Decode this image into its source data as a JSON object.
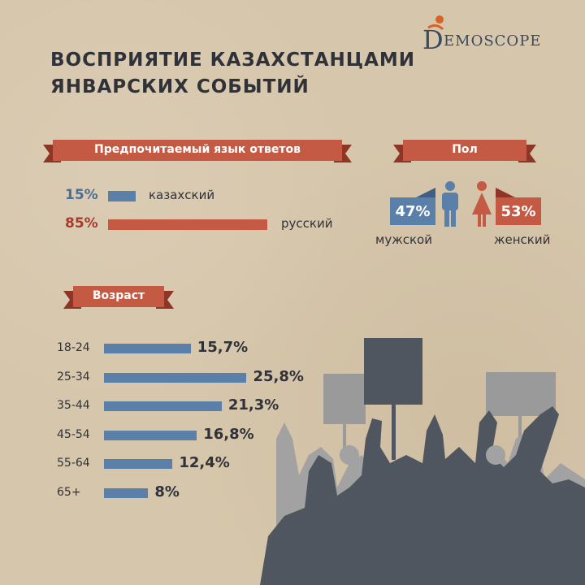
{
  "header": {
    "title_line1": "ВОСПРИЯТИЕ КАЗАХСТАНЦАМИ",
    "title_line2": "ЯНВАРСКИХ СОБЫТИЙ",
    "logo_initial": "D",
    "logo_text": "EMOSCOPE"
  },
  "colors": {
    "banner": "#c55a44",
    "banner_dark": "#8e3526",
    "blue": "#5a7fa8",
    "red": "#c55a44",
    "crowd_dark": "#505660",
    "crowd_light": "#9a9a9a"
  },
  "language": {
    "banner_label": "Предпочитаемый язык ответов",
    "items": [
      {
        "pct": "15%",
        "label": "казахский",
        "value": 15
      },
      {
        "pct": "85%",
        "label": "русский",
        "value": 85
      }
    ]
  },
  "gender": {
    "banner_label": "Пол",
    "male": {
      "pct": "47%",
      "label": "мужской",
      "value": 47,
      "icon": "male-person-icon"
    },
    "female": {
      "pct": "53%",
      "label": "женский",
      "value": 53,
      "icon": "female-person-icon"
    }
  },
  "age": {
    "banner_label": "Возраст"
  },
  "chart_data": {
    "type": "bar",
    "categories": [
      "18-24",
      "25-34",
      "35-44",
      "45-54",
      "55-64",
      "65+"
    ],
    "values": [
      15.7,
      25.8,
      21.3,
      16.8,
      12.4,
      8
    ],
    "value_labels": [
      "15,7%",
      "25,8%",
      "21,3%",
      "16,8%",
      "12,4%",
      "8%"
    ],
    "title": "Возраст",
    "orientation": "horizontal"
  },
  "illustration": {
    "icon": "protest-crowd-illustration"
  }
}
